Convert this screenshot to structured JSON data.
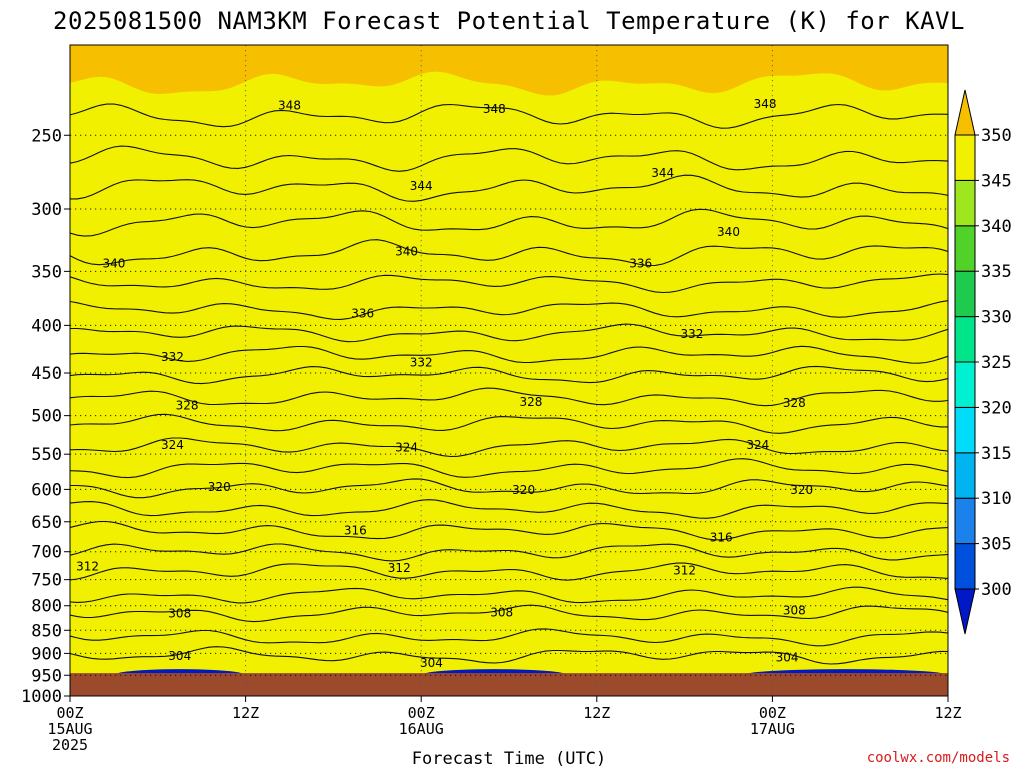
{
  "chart_data": {
    "type": "heatmap",
    "title": "2025081500 NAM3KM Forecast Potential Temperature (K) for KAVL",
    "xlabel": "Forecast Time (UTC)",
    "ylabel": "",
    "credit": "coolwx.com/models",
    "y_axis": {
      "scale": "pressure (hPa, log)",
      "range": [
        1000,
        200
      ],
      "ticks": [
        250,
        300,
        350,
        400,
        450,
        500,
        550,
        600,
        650,
        700,
        750,
        800,
        850,
        900,
        950,
        1000
      ]
    },
    "x_axis": {
      "range_hours": [
        0,
        60
      ],
      "ticks": [
        {
          "hour": 0,
          "label": "00Z",
          "date": "15AUG",
          "year": "2025"
        },
        {
          "hour": 12,
          "label": "12Z",
          "date": "",
          "year": ""
        },
        {
          "hour": 24,
          "label": "00Z",
          "date": "16AUG",
          "year": ""
        },
        {
          "hour": 36,
          "label": "12Z",
          "date": "",
          "year": ""
        },
        {
          "hour": 48,
          "label": "00Z",
          "date": "17AUG",
          "year": ""
        },
        {
          "hour": 60,
          "label": "12Z",
          "date": "",
          "year": ""
        }
      ]
    },
    "grid": "dotted",
    "surface_pressure_hPa": 945,
    "colorbar": {
      "labels": [
        "300",
        "305",
        "310",
        "315",
        "320",
        "325",
        "330",
        "335",
        "340",
        "345",
        "350"
      ],
      "colors": [
        "#0018c8",
        "#0050de",
        "#1a82ea",
        "#00b4f2",
        "#00dcfa",
        "#00f0d2",
        "#00e48a",
        "#1ecb4e",
        "#50d228",
        "#9ee61e",
        "#f0f000",
        "#f6c000"
      ]
    },
    "isentropes_K": [
      304,
      306,
      308,
      310,
      312,
      314,
      316,
      318,
      320,
      322,
      324,
      326,
      328,
      330,
      332,
      334,
      336,
      338,
      340,
      342,
      344,
      346,
      348,
      350
    ],
    "isentrope_ref_pressure_hPa": {
      "304": 905,
      "306": 865,
      "308": 815,
      "310": 780,
      "312": 735,
      "314": 700,
      "316": 665,
      "318": 630,
      "320": 598,
      "322": 570,
      "324": 540,
      "326": 510,
      "328": 478,
      "330": 452,
      "332": 430,
      "334": 408,
      "336": 385,
      "338": 360,
      "340": 335,
      "342": 310,
      "344": 285,
      "346": 265,
      "348": 238,
      "350": 220
    },
    "contour_labels": [
      {
        "value": "304",
        "hour": 7.5,
        "hPa": 905
      },
      {
        "value": "304",
        "hour": 24.7,
        "hPa": 920
      },
      {
        "value": "304",
        "hour": 49,
        "hPa": 908
      },
      {
        "value": "308",
        "hour": 7.5,
        "hPa": 814
      },
      {
        "value": "308",
        "hour": 29.5,
        "hPa": 812
      },
      {
        "value": "308",
        "hour": 49.5,
        "hPa": 808
      },
      {
        "value": "312",
        "hour": 1.2,
        "hPa": 725
      },
      {
        "value": "312",
        "hour": 22.5,
        "hPa": 728
      },
      {
        "value": "312",
        "hour": 42,
        "hPa": 732
      },
      {
        "value": "316",
        "hour": 19.5,
        "hPa": 663
      },
      {
        "value": "316",
        "hour": 44.5,
        "hPa": 675
      },
      {
        "value": "320",
        "hour": 10.2,
        "hPa": 596
      },
      {
        "value": "320",
        "hour": 31,
        "hPa": 600
      },
      {
        "value": "320",
        "hour": 50,
        "hPa": 600
      },
      {
        "value": "324",
        "hour": 7,
        "hPa": 537
      },
      {
        "value": "324",
        "hour": 23,
        "hPa": 540
      },
      {
        "value": "324",
        "hour": 47,
        "hPa": 537
      },
      {
        "value": "328",
        "hour": 8,
        "hPa": 487
      },
      {
        "value": "328",
        "hour": 31.5,
        "hPa": 483
      },
      {
        "value": "328",
        "hour": 49.5,
        "hPa": 484
      },
      {
        "value": "332",
        "hour": 7,
        "hPa": 432
      },
      {
        "value": "332",
        "hour": 24,
        "hPa": 438
      },
      {
        "value": "332",
        "hour": 42.5,
        "hPa": 408
      },
      {
        "value": "336",
        "hour": 20,
        "hPa": 388
      },
      {
        "value": "336",
        "hour": 39,
        "hPa": 343
      },
      {
        "value": "340",
        "hour": 3,
        "hPa": 343
      },
      {
        "value": "340",
        "hour": 23,
        "hPa": 333
      },
      {
        "value": "340",
        "hour": 45,
        "hPa": 317
      },
      {
        "value": "344",
        "hour": 24,
        "hPa": 283
      },
      {
        "value": "344",
        "hour": 40.5,
        "hPa": 274
      },
      {
        "value": "348",
        "hour": 15,
        "hPa": 232
      },
      {
        "value": "348",
        "hour": 29,
        "hPa": 234
      },
      {
        "value": "348",
        "hour": 47.5,
        "hPa": 231
      }
    ]
  }
}
